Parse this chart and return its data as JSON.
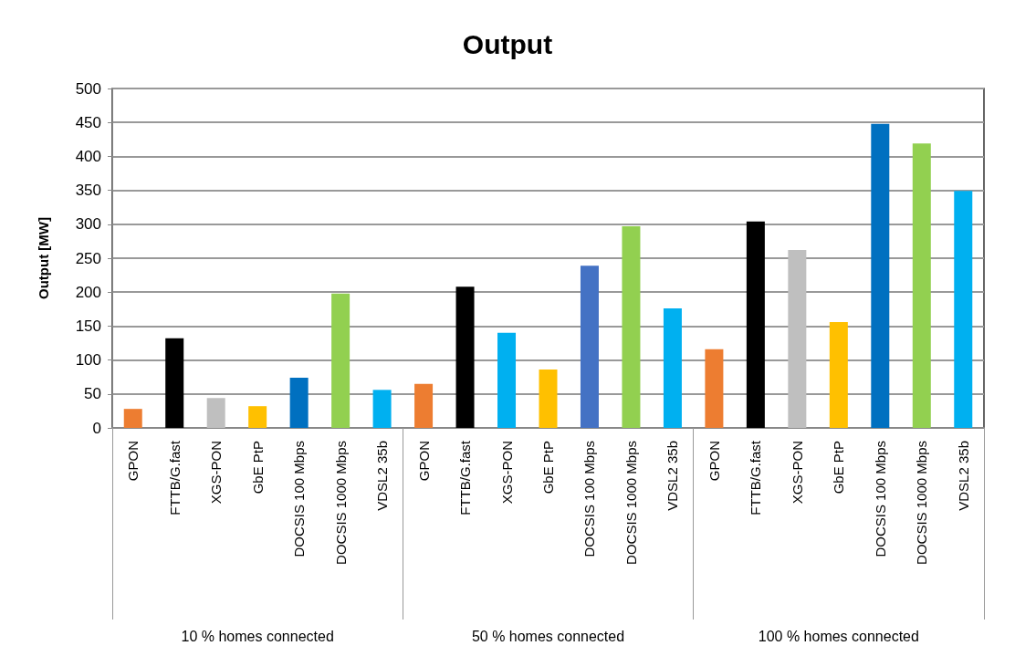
{
  "chart_data": {
    "type": "bar",
    "title": "Output",
    "ylabel": "Output [MW]",
    "categories": [
      "GPON",
      "FTTB/G.fast",
      "XGS-PON",
      "GbE PtP",
      "DOCSIS 100 Mbps",
      "DOCSIS 1000 Mbps",
      "VDSL2 35b",
      "GPON",
      "FTTB/G.fast",
      "XGS-PON",
      "GbE PtP",
      "DOCSIS 100 Mbps",
      "DOCSIS 1000 Mbps",
      "VDSL2 35b",
      "GPON",
      "FTTB/G.fast",
      "XGS-PON",
      "GbE PtP",
      "DOCSIS 100 Mbps",
      "DOCSIS 1000 Mbps",
      "VDSL2 35b"
    ],
    "values": [
      28,
      132,
      44,
      32,
      74,
      198,
      56,
      65,
      208,
      140,
      86,
      239,
      297,
      176,
      116,
      304,
      262,
      156,
      448,
      419,
      349
    ],
    "colors": [
      "#ed7d31",
      "#000000",
      "#bfbfbf",
      "#ffc000",
      "#0070c0",
      "#92d050",
      "#00b0f0",
      "#ed7d31",
      "#000000",
      "#00b0f0",
      "#ffc000",
      "#4472c4",
      "#92d050",
      "#00b0f0",
      "#ed7d31",
      "#000000",
      "#bfbfbf",
      "#ffc000",
      "#0070c0",
      "#92d050",
      "#00b0f0"
    ],
    "annotations": [
      "10 % homes connected",
      "50 % homes connected",
      "100 % homes connected"
    ],
    "ylim": [
      0,
      500
    ],
    "yticks": [
      0,
      50,
      100,
      150,
      200,
      250,
      300,
      350,
      400,
      450,
      500
    ],
    "grid": "y"
  }
}
